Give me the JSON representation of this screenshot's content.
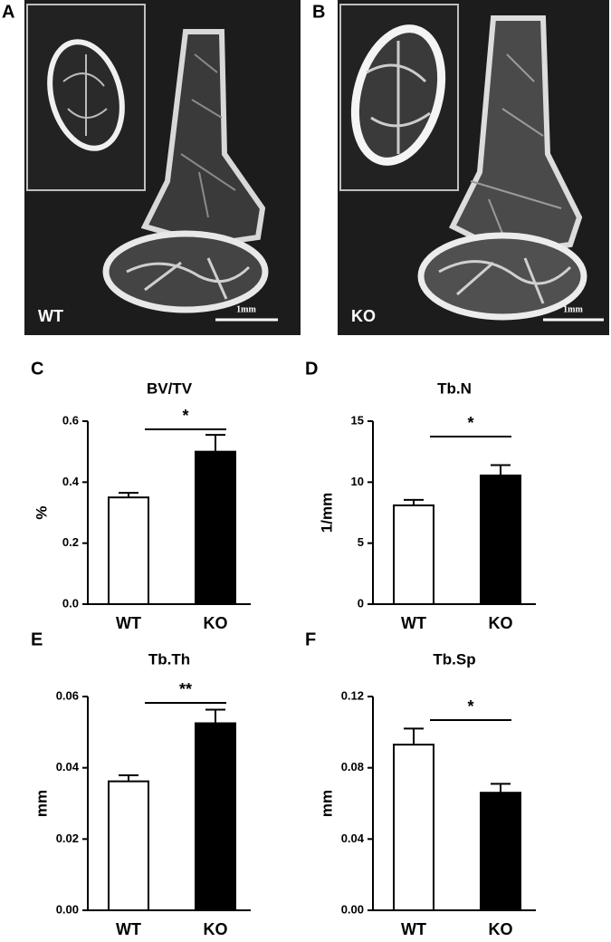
{
  "images": [
    {
      "panel": "A",
      "label": "WT",
      "scale_bar": "1mm"
    },
    {
      "panel": "B",
      "label": "KO",
      "scale_bar": "1mm"
    }
  ],
  "chart_data": [
    {
      "type": "bar",
      "panel": "C",
      "title": "BV/TV",
      "ylabel": "%",
      "categories": [
        "WT",
        "KO"
      ],
      "values": [
        0.35,
        0.5
      ],
      "errors": [
        0.015,
        0.055
      ],
      "colors": [
        "#ffffff",
        "#000000"
      ],
      "significance": "*",
      "ylim": [
        0,
        0.6
      ],
      "yticks": [
        {
          "value": 0,
          "label": "0.0"
        },
        0.2,
        0.4,
        0.6
      ]
    },
    {
      "type": "bar",
      "panel": "D",
      "title": "Tb.N",
      "ylabel": "1/mm",
      "categories": [
        "WT",
        "KO"
      ],
      "values": [
        8.1,
        10.55
      ],
      "errors": [
        0.45,
        0.85
      ],
      "colors": [
        "#ffffff",
        "#000000"
      ],
      "significance": "*",
      "ylim": [
        0,
        15
      ],
      "yticks": [
        0,
        5,
        10,
        15
      ]
    },
    {
      "type": "bar",
      "panel": "E",
      "title": "Tb.Th",
      "ylabel": "mm",
      "categories": [
        "WT",
        "KO"
      ],
      "values": [
        0.0362,
        0.0525
      ],
      "errors": [
        0.0017,
        0.0038
      ],
      "colors": [
        "#ffffff",
        "#000000"
      ],
      "significance": "**",
      "ylim": [
        0,
        0.06
      ],
      "yticks": [
        {
          "value": 0,
          "label": "0.00"
        },
        0.02,
        0.04,
        0.06
      ]
    },
    {
      "type": "bar",
      "panel": "F",
      "title": "Tb.Sp",
      "ylabel": "mm",
      "categories": [
        "WT",
        "KO"
      ],
      "values": [
        0.093,
        0.066
      ],
      "errors": [
        0.009,
        0.005
      ],
      "colors": [
        "#ffffff",
        "#000000"
      ],
      "significance": "*",
      "ylim": [
        0,
        0.12
      ],
      "yticks": [
        {
          "value": 0,
          "label": "0.00"
        },
        0.04,
        0.08,
        0.12
      ]
    }
  ]
}
